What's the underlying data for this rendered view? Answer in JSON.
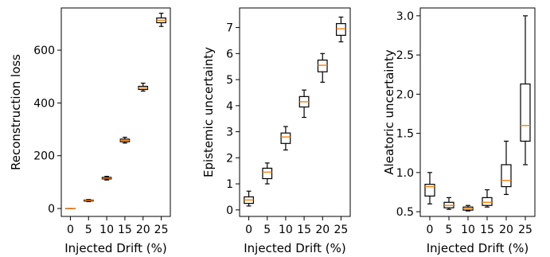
{
  "chart_data": [
    {
      "type": "box",
      "xlabel": "Injected Drift (%)",
      "ylabel": "Reconstruction loss",
      "categories": [
        "0",
        "5",
        "10",
        "15",
        "20",
        "25"
      ],
      "ylim": [
        -30,
        760
      ],
      "yticks": [
        0,
        200,
        400,
        600
      ],
      "box_color": "#000000",
      "median_color": "#ff7f0e",
      "boxes": [
        {
          "whislo": 0,
          "q1": 0,
          "med": 0,
          "q3": 0,
          "whishi": 0
        },
        {
          "whislo": 26,
          "q1": 28,
          "med": 30,
          "q3": 32,
          "whishi": 34
        },
        {
          "whislo": 108,
          "q1": 112,
          "med": 115,
          "q3": 118,
          "whishi": 122
        },
        {
          "whislo": 248,
          "q1": 253,
          "med": 258,
          "q3": 263,
          "whishi": 270
        },
        {
          "whislo": 445,
          "q1": 451,
          "med": 457,
          "q3": 463,
          "whishi": 475
        },
        {
          "whislo": 690,
          "q1": 704,
          "med": 713,
          "q3": 722,
          "whishi": 740
        }
      ]
    },
    {
      "type": "box",
      "xlabel": "Injected Drift (%)",
      "ylabel": "Epistemic uncertainty",
      "categories": [
        "0",
        "5",
        "10",
        "15",
        "20",
        "25"
      ],
      "ylim": [
        -0.25,
        7.75
      ],
      "yticks": [
        0,
        1,
        2,
        3,
        4,
        5,
        6,
        7
      ],
      "box_color": "#000000",
      "median_color": "#ff7f0e",
      "boxes": [
        {
          "whislo": 0.15,
          "q1": 0.25,
          "med": 0.38,
          "q3": 0.5,
          "whishi": 0.72
        },
        {
          "whislo": 1.0,
          "q1": 1.2,
          "med": 1.45,
          "q3": 1.6,
          "whishi": 1.8
        },
        {
          "whislo": 2.3,
          "q1": 2.55,
          "med": 2.8,
          "q3": 2.95,
          "whishi": 3.2
        },
        {
          "whislo": 3.55,
          "q1": 3.95,
          "med": 4.15,
          "q3": 4.35,
          "whishi": 4.6
        },
        {
          "whislo": 4.9,
          "q1": 5.3,
          "med": 5.55,
          "q3": 5.75,
          "whishi": 6.0
        },
        {
          "whislo": 6.45,
          "q1": 6.7,
          "med": 6.95,
          "q3": 7.15,
          "whishi": 7.4
        }
      ]
    },
    {
      "type": "box",
      "xlabel": "Injected Drift (%)",
      "ylabel": "Aleatoric uncertainty",
      "categories": [
        "0",
        "5",
        "10",
        "15",
        "20",
        "25"
      ],
      "ylim": [
        0.44,
        3.1
      ],
      "yticks": [
        0.5,
        1.0,
        1.5,
        2.0,
        2.5,
        3.0
      ],
      "ytick_labels": [
        "0.5",
        "1.0",
        "1.5",
        "2.0",
        "2.5",
        "3.0"
      ],
      "box_color": "#000000",
      "median_color": "#ff7f0e",
      "boxes": [
        {
          "whislo": 0.6,
          "q1": 0.7,
          "med": 0.82,
          "q3": 0.85,
          "whishi": 1.0
        },
        {
          "whislo": 0.53,
          "q1": 0.55,
          "med": 0.58,
          "q3": 0.62,
          "whishi": 0.68
        },
        {
          "whislo": 0.51,
          "q1": 0.52,
          "med": 0.54,
          "q3": 0.56,
          "whishi": 0.58
        },
        {
          "whislo": 0.56,
          "q1": 0.58,
          "med": 0.62,
          "q3": 0.68,
          "whishi": 0.78
        },
        {
          "whislo": 0.72,
          "q1": 0.82,
          "med": 0.9,
          "q3": 1.1,
          "whishi": 1.4
        },
        {
          "whislo": 1.1,
          "q1": 1.4,
          "med": 1.6,
          "q3": 2.13,
          "whishi": 3.0
        }
      ]
    }
  ]
}
